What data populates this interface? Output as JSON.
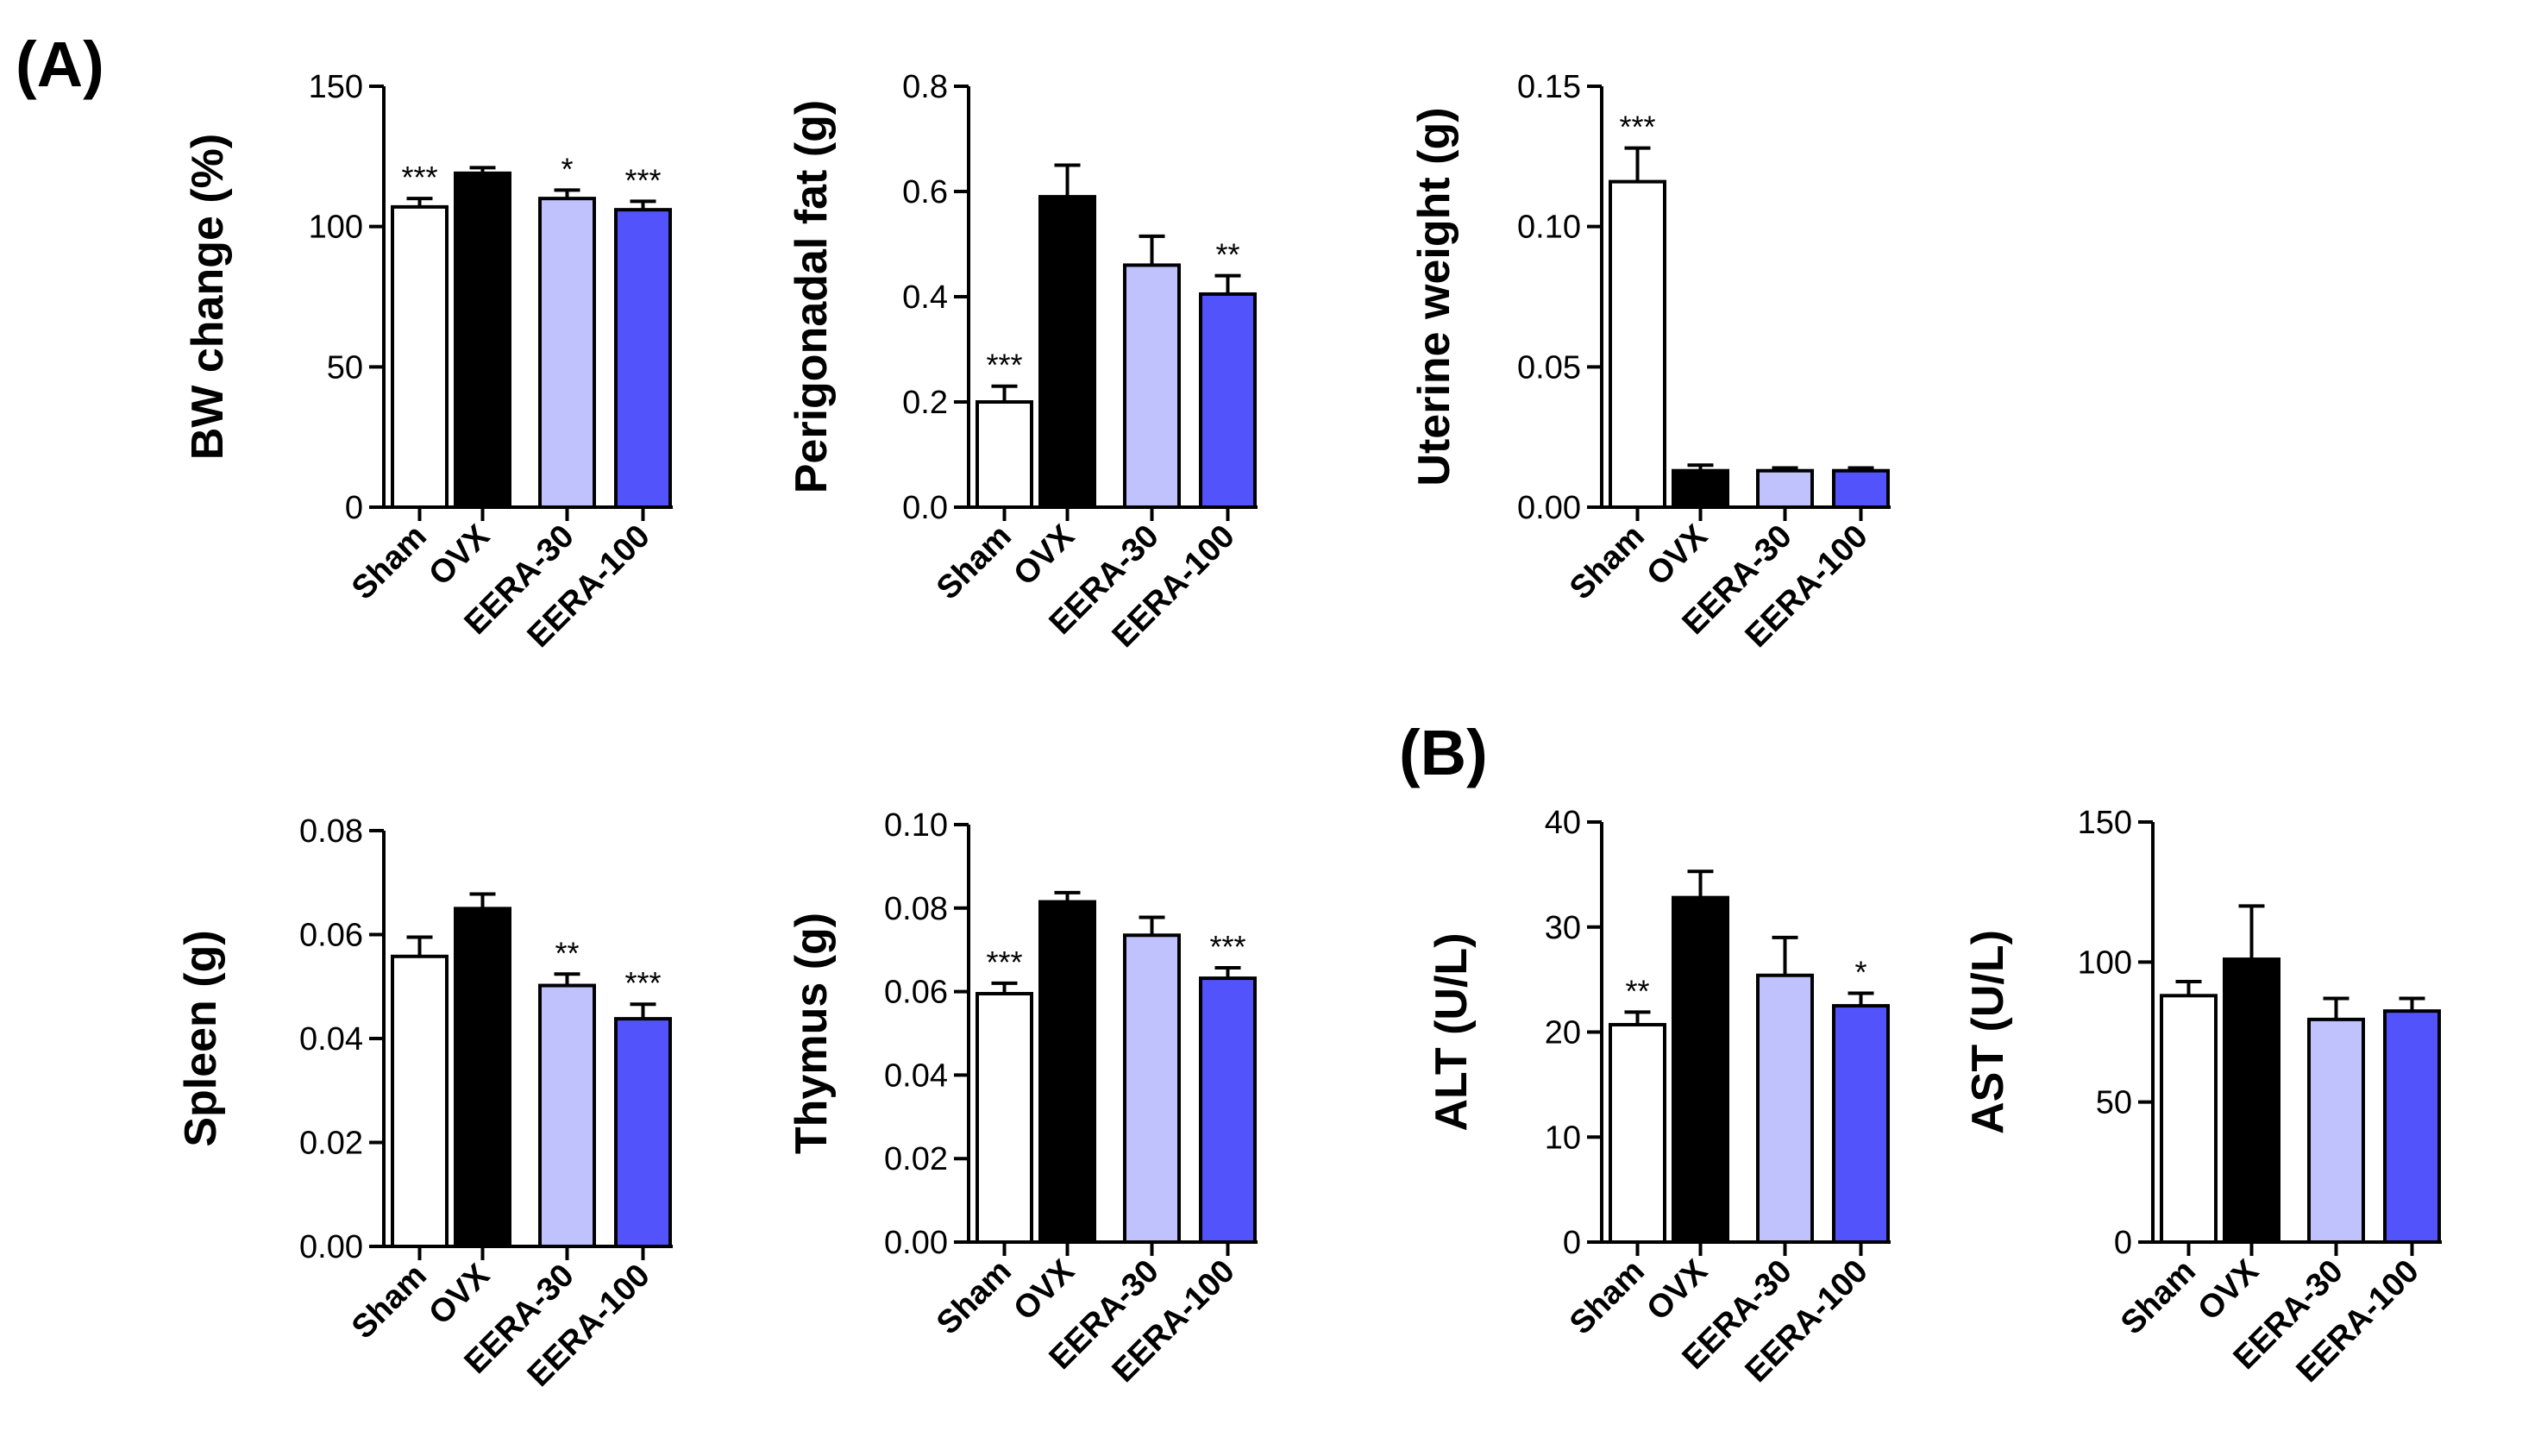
{
  "panel_labels": [
    "(A)",
    "(B)"
  ],
  "groups": [
    "Sham",
    "OVX",
    "EERA-30",
    "EERA-100"
  ],
  "colors": {
    "Sham": "#ffffff",
    "OVX": "#000000",
    "EERA-30": "#bfc2fc",
    "EERA-100": "#5353fb"
  },
  "chart_data": [
    {
      "type": "bar",
      "panel": "A",
      "ylabel": "BW change (%)",
      "categories": [
        "Sham",
        "OVX",
        "EERA-30",
        "EERA-100"
      ],
      "values": [
        107,
        119,
        110,
        106
      ],
      "errors": [
        3,
        2,
        3,
        3
      ],
      "significance": [
        "***",
        "",
        "*",
        "***"
      ],
      "ylim": [
        0,
        150
      ],
      "yticks": [
        0,
        50,
        100,
        150
      ],
      "ytick_labels": [
        "0",
        "50",
        "100",
        "150"
      ]
    },
    {
      "type": "bar",
      "panel": "A",
      "ylabel": "Perigonadal fat (g)",
      "categories": [
        "Sham",
        "OVX",
        "EERA-30",
        "EERA-100"
      ],
      "values": [
        0.2,
        0.59,
        0.46,
        0.405
      ],
      "errors": [
        0.03,
        0.06,
        0.055,
        0.035
      ],
      "significance": [
        "***",
        "",
        "",
        "**"
      ],
      "ylim": [
        0,
        0.8
      ],
      "yticks": [
        0,
        0.2,
        0.4,
        0.6,
        0.8
      ],
      "ytick_labels": [
        "0.0",
        "0.2",
        "0.4",
        "0.6",
        "0.8"
      ]
    },
    {
      "type": "bar",
      "panel": "A",
      "ylabel": "Uterine weight (g)",
      "categories": [
        "Sham",
        "OVX",
        "EERA-30",
        "EERA-100"
      ],
      "values": [
        0.116,
        0.013,
        0.013,
        0.013
      ],
      "errors": [
        0.012,
        0.002,
        0.001,
        0.001
      ],
      "significance": [
        "***",
        "",
        "",
        ""
      ],
      "ylim": [
        0,
        0.15
      ],
      "yticks": [
        0,
        0.05,
        0.1,
        0.15
      ],
      "ytick_labels": [
        "0.00",
        "0.05",
        "0.10",
        "0.15"
      ]
    },
    {
      "type": "bar",
      "panel": "A",
      "ylabel": "Spleen (g)",
      "categories": [
        "Sham",
        "OVX",
        "EERA-30",
        "EERA-100"
      ],
      "values": [
        0.0558,
        0.065,
        0.0502,
        0.0438
      ],
      "errors": [
        0.0037,
        0.0028,
        0.0022,
        0.0028
      ],
      "significance": [
        "",
        "",
        "**",
        "***"
      ],
      "ylim": [
        0,
        0.08
      ],
      "yticks": [
        0,
        0.02,
        0.04,
        0.06,
        0.08
      ],
      "ytick_labels": [
        "0.00",
        "0.02",
        "0.04",
        "0.06",
        "0.08"
      ]
    },
    {
      "type": "bar",
      "panel": "A",
      "ylabel": "Thymus (g)",
      "categories": [
        "Sham",
        "OVX",
        "EERA-30",
        "EERA-100"
      ],
      "values": [
        0.0595,
        0.0815,
        0.0735,
        0.0632
      ],
      "errors": [
        0.0025,
        0.0022,
        0.0043,
        0.0025
      ],
      "significance": [
        "***",
        "",
        "",
        "***"
      ],
      "ylim": [
        0,
        0.1
      ],
      "yticks": [
        0,
        0.02,
        0.04,
        0.06,
        0.08,
        0.1
      ],
      "ytick_labels": [
        "0.00",
        "0.02",
        "0.04",
        "0.06",
        "0.08",
        "0.10"
      ]
    },
    {
      "type": "bar",
      "panel": "B",
      "ylabel": "ALT (U/L)",
      "categories": [
        "Sham",
        "OVX",
        "EERA-30",
        "EERA-100"
      ],
      "values": [
        20.7,
        32.8,
        25.4,
        22.5
      ],
      "errors": [
        1.2,
        2.5,
        3.6,
        1.2
      ],
      "significance": [
        "**",
        "",
        "",
        "*"
      ],
      "ylim": [
        0,
        40
      ],
      "yticks": [
        0,
        10,
        20,
        30,
        40
      ],
      "ytick_labels": [
        "0",
        "10",
        "20",
        "30",
        "40"
      ]
    },
    {
      "type": "bar",
      "panel": "B",
      "ylabel": "AST (U/L)",
      "categories": [
        "Sham",
        "OVX",
        "EERA-30",
        "EERA-100"
      ],
      "values": [
        88,
        101,
        79.5,
        82.5
      ],
      "errors": [
        5,
        19,
        7.5,
        4.5
      ],
      "significance": [
        "",
        "",
        "",
        ""
      ],
      "ylim": [
        0,
        150
      ],
      "yticks": [
        0,
        50,
        100,
        150
      ],
      "ytick_labels": [
        "0",
        "50",
        "100",
        "150"
      ]
    }
  ]
}
